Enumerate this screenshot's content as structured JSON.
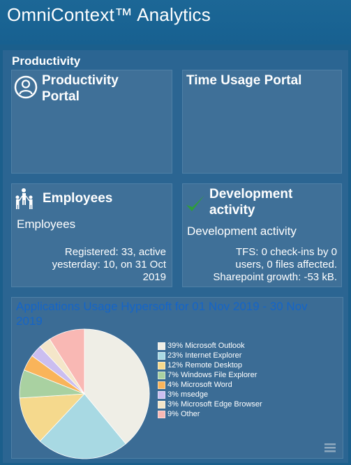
{
  "header": {
    "title": "OmniContext™ Analytics"
  },
  "section": {
    "title": "Productivity"
  },
  "tiles": {
    "productivity_portal": {
      "title_line1": "Productivity",
      "title_line2": "Portal",
      "icon": "user-circle-icon"
    },
    "time_usage_portal": {
      "title": "Time Usage Portal"
    },
    "employees": {
      "title": "Employees",
      "subtitle": "Employees",
      "stat_line1": "Registered: 33, active",
      "stat_line2": "yesterday: 10, on 31 Oct",
      "stat_line3": "2019",
      "icon": "people-group-icon"
    },
    "development": {
      "title_line1": "Development",
      "title_line2": "activity",
      "subtitle": "Development activity",
      "stat_line1": "TFS: 0 check-ins by 0",
      "stat_line2": "users, 0 files affected.",
      "stat_line3": "Sharepoint growth: -53 kB.",
      "icon": "checkmark-icon",
      "icon_color": "#2e9e3a"
    }
  },
  "chart_panel": {
    "title": "Applications Usage Hypersoft for 01 Nov 2019 - 30 Nov 2019",
    "title_color": "#1565c8",
    "menu_icon": "hamburger-menu-icon"
  },
  "chart_data": {
    "type": "pie",
    "title": "Applications Usage Hypersoft for 01 Nov 2019 - 30 Nov 2019",
    "legend_position": "right",
    "slices": [
      {
        "label": "39% Microsoft Outlook",
        "value": 39,
        "color": "#efeee6"
      },
      {
        "label": "23% Internet Explorer",
        "value": 23,
        "color": "#a8d9e3"
      },
      {
        "label": "12% Remote Desktop",
        "value": 12,
        "color": "#f5d98d"
      },
      {
        "label": "7% Windows File Explorer",
        "value": 7,
        "color": "#a9d1a1"
      },
      {
        "label": "4% Microsoft Word",
        "value": 4,
        "color": "#f9b45a"
      },
      {
        "label": "3% msedge",
        "value": 3,
        "color": "#cbbef0"
      },
      {
        "label": "3% Microsoft Edge Browser",
        "value": 3,
        "color": "#f4e6c9"
      },
      {
        "label": "9% Other",
        "value": 9,
        "color": "#f9b8b4"
      }
    ]
  }
}
